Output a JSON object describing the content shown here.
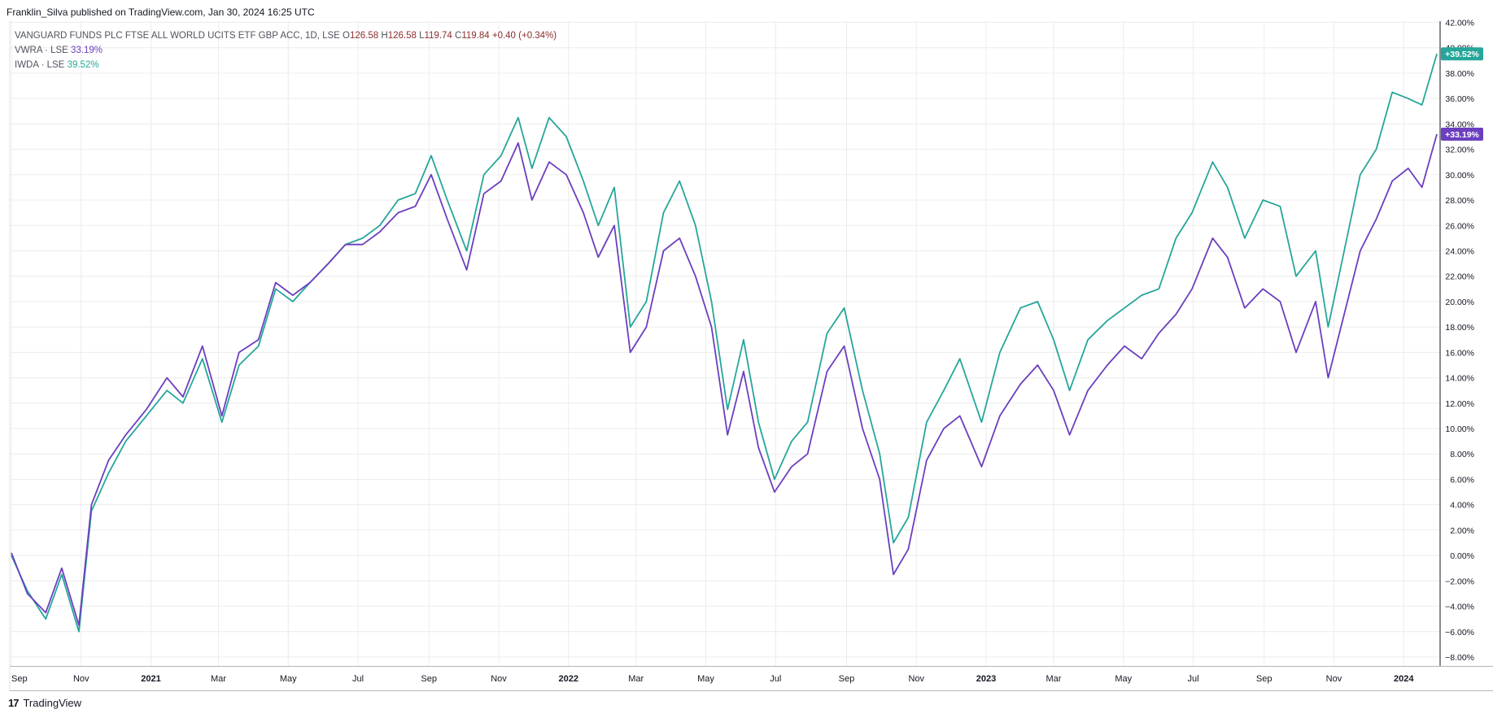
{
  "header": {
    "publish_line": "Franklin_Silva published on TradingView.com, Jan 30, 2024 16:25 UTC"
  },
  "legend": {
    "main_symbol": "VANGUARD FUNDS PLC FTSE ALL WORLD UCITS ETF GBP ACC, 1D, LSE",
    "open_label": "O",
    "open_value": "126.58",
    "high_label": "H",
    "high_value": "126.58",
    "low_label": "L",
    "low_value": "119.74",
    "close_label": "C",
    "close_value": "119.84",
    "change": "+0.40 (+0.34%)",
    "series": [
      {
        "name": "VWRA · LSE",
        "value": "33.19%"
      },
      {
        "name": "IWDA · LSE",
        "value": "39.52%"
      }
    ]
  },
  "footer": {
    "brand_logo": "17",
    "brand": "TradingView"
  },
  "colors": {
    "vwra": "#6b3fbf",
    "iwda": "#26a69a",
    "grid": "#ececec",
    "axis_text": "#131722"
  },
  "chart_data": {
    "type": "line",
    "x_tick_labels": [
      "Sep",
      "Nov",
      "2021",
      "Mar",
      "May",
      "Jul",
      "Sep",
      "Nov",
      "2022",
      "Mar",
      "May",
      "Jul",
      "Sep",
      "Nov",
      "2023",
      "Mar",
      "May",
      "Jul",
      "Sep",
      "Nov",
      "2024"
    ],
    "y_tick_labels": [
      "42.00%",
      "40.00%",
      "38.00%",
      "36.00%",
      "34.00%",
      "32.00%",
      "30.00%",
      "28.00%",
      "26.00%",
      "24.00%",
      "22.00%",
      "20.00%",
      "18.00%",
      "16.00%",
      "14.00%",
      "12.00%",
      "10.00%",
      "8.00%",
      "6.00%",
      "4.00%",
      "2.00%",
      "0.00%",
      "−2.00%",
      "−4.00%",
      "−6.00%",
      "−8.00%"
    ],
    "y_range": [
      -8.5,
      42
    ],
    "y_unit": "%",
    "x_range": [
      "2020-09-01",
      "2024-01-30"
    ],
    "grid": true,
    "series": [
      {
        "name": "VWRA · LSE",
        "last_value_label": "+33.19%",
        "x": [
          "2020-09-01",
          "2020-09-15",
          "2020-10-01",
          "2020-10-15",
          "2020-10-30",
          "2020-11-10",
          "2020-11-25",
          "2020-12-10",
          "2020-12-28",
          "2021-01-15",
          "2021-01-29",
          "2021-02-15",
          "2021-03-04",
          "2021-03-19",
          "2021-04-05",
          "2021-04-20",
          "2021-05-05",
          "2021-05-20",
          "2021-06-05",
          "2021-06-20",
          "2021-07-05",
          "2021-07-20",
          "2021-08-05",
          "2021-08-20",
          "2021-09-03",
          "2021-09-17",
          "2021-10-04",
          "2021-10-19",
          "2021-11-03",
          "2021-11-18",
          "2021-11-30",
          "2021-12-15",
          "2021-12-30",
          "2022-01-14",
          "2022-01-27",
          "2022-02-10",
          "2022-02-24",
          "2022-03-10",
          "2022-03-25",
          "2022-04-08",
          "2022-04-22",
          "2022-05-06",
          "2022-05-20",
          "2022-06-03",
          "2022-06-16",
          "2022-06-30",
          "2022-07-15",
          "2022-07-29",
          "2022-08-15",
          "2022-08-30",
          "2022-09-15",
          "2022-09-30",
          "2022-10-12",
          "2022-10-25",
          "2022-11-10",
          "2022-11-25",
          "2022-12-09",
          "2022-12-28",
          "2023-01-13",
          "2023-01-31",
          "2023-02-15",
          "2023-03-01",
          "2023-03-15",
          "2023-03-31",
          "2023-04-17",
          "2023-05-02",
          "2023-05-17",
          "2023-06-01",
          "2023-06-16",
          "2023-06-30",
          "2023-07-18",
          "2023-07-31",
          "2023-08-15",
          "2023-08-31",
          "2023-09-15",
          "2023-09-29",
          "2023-10-16",
          "2023-10-27",
          "2023-11-10",
          "2023-11-24",
          "2023-12-08",
          "2023-12-22",
          "2024-01-05",
          "2024-01-17",
          "2024-01-30"
        ],
        "values": [
          0.2,
          -3.0,
          -4.5,
          -1.0,
          -5.5,
          4.0,
          7.5,
          9.5,
          11.5,
          14.0,
          12.5,
          16.5,
          11.0,
          16.0,
          17.0,
          21.5,
          20.5,
          21.5,
          23.0,
          24.5,
          24.5,
          25.5,
          27.0,
          27.5,
          30.0,
          26.5,
          22.5,
          28.5,
          29.5,
          32.5,
          28.0,
          31.0,
          30.0,
          27.0,
          23.5,
          26.0,
          16.0,
          18.0,
          24.0,
          25.0,
          22.0,
          18.0,
          9.5,
          14.5,
          8.5,
          5.0,
          7.0,
          8.0,
          14.5,
          16.5,
          10.0,
          6.0,
          -1.5,
          0.5,
          7.5,
          10.0,
          11.0,
          7.0,
          11.0,
          13.5,
          15.0,
          13.0,
          9.5,
          13.0,
          15.0,
          16.5,
          15.5,
          17.5,
          19.0,
          21.0,
          25.0,
          23.5,
          19.5,
          21.0,
          20.0,
          16.0,
          20.0,
          14.0,
          19.0,
          24.0,
          26.5,
          29.5,
          30.5,
          29.0,
          33.19
        ]
      },
      {
        "name": "IWDA · LSE",
        "last_value_label": "+39.52%",
        "x": [
          "2020-09-01",
          "2020-09-15",
          "2020-10-01",
          "2020-10-15",
          "2020-10-30",
          "2020-11-10",
          "2020-11-25",
          "2020-12-10",
          "2020-12-28",
          "2021-01-15",
          "2021-01-29",
          "2021-02-15",
          "2021-03-04",
          "2021-03-19",
          "2021-04-05",
          "2021-04-20",
          "2021-05-05",
          "2021-05-20",
          "2021-06-05",
          "2021-06-20",
          "2021-07-05",
          "2021-07-20",
          "2021-08-05",
          "2021-08-20",
          "2021-09-03",
          "2021-09-17",
          "2021-10-04",
          "2021-10-19",
          "2021-11-03",
          "2021-11-18",
          "2021-11-30",
          "2021-12-15",
          "2021-12-30",
          "2022-01-14",
          "2022-01-27",
          "2022-02-10",
          "2022-02-24",
          "2022-03-10",
          "2022-03-25",
          "2022-04-08",
          "2022-04-22",
          "2022-05-06",
          "2022-05-20",
          "2022-06-03",
          "2022-06-16",
          "2022-06-30",
          "2022-07-15",
          "2022-07-29",
          "2022-08-15",
          "2022-08-30",
          "2022-09-15",
          "2022-09-30",
          "2022-10-12",
          "2022-10-25",
          "2022-11-10",
          "2022-11-25",
          "2022-12-09",
          "2022-12-28",
          "2023-01-13",
          "2023-01-31",
          "2023-02-15",
          "2023-03-01",
          "2023-03-15",
          "2023-03-31",
          "2023-04-17",
          "2023-05-02",
          "2023-05-17",
          "2023-06-01",
          "2023-06-16",
          "2023-06-30",
          "2023-07-18",
          "2023-07-31",
          "2023-08-15",
          "2023-08-31",
          "2023-09-15",
          "2023-09-29",
          "2023-10-16",
          "2023-10-27",
          "2023-11-10",
          "2023-11-24",
          "2023-12-08",
          "2023-12-22",
          "2024-01-05",
          "2024-01-17",
          "2024-01-30"
        ],
        "values": [
          0.0,
          -2.8,
          -5.0,
          -1.5,
          -6.0,
          3.5,
          6.5,
          9.0,
          11.0,
          13.0,
          12.0,
          15.5,
          10.5,
          15.0,
          16.5,
          21.0,
          20.0,
          21.5,
          23.0,
          24.5,
          25.0,
          26.0,
          28.0,
          28.5,
          31.5,
          28.0,
          24.0,
          30.0,
          31.5,
          34.5,
          30.5,
          34.5,
          33.0,
          29.5,
          26.0,
          29.0,
          18.0,
          20.0,
          27.0,
          29.5,
          26.0,
          20.0,
          11.5,
          17.0,
          10.5,
          6.0,
          9.0,
          10.5,
          17.5,
          19.5,
          13.0,
          8.0,
          1.0,
          3.0,
          10.5,
          13.0,
          15.5,
          10.5,
          16.0,
          19.5,
          20.0,
          17.0,
          13.0,
          17.0,
          18.5,
          19.5,
          20.5,
          21.0,
          25.0,
          27.0,
          31.0,
          29.0,
          25.0,
          28.0,
          27.5,
          22.0,
          24.0,
          18.0,
          24.0,
          30.0,
          32.0,
          36.5,
          36.0,
          35.5,
          39.52
        ]
      }
    ]
  }
}
